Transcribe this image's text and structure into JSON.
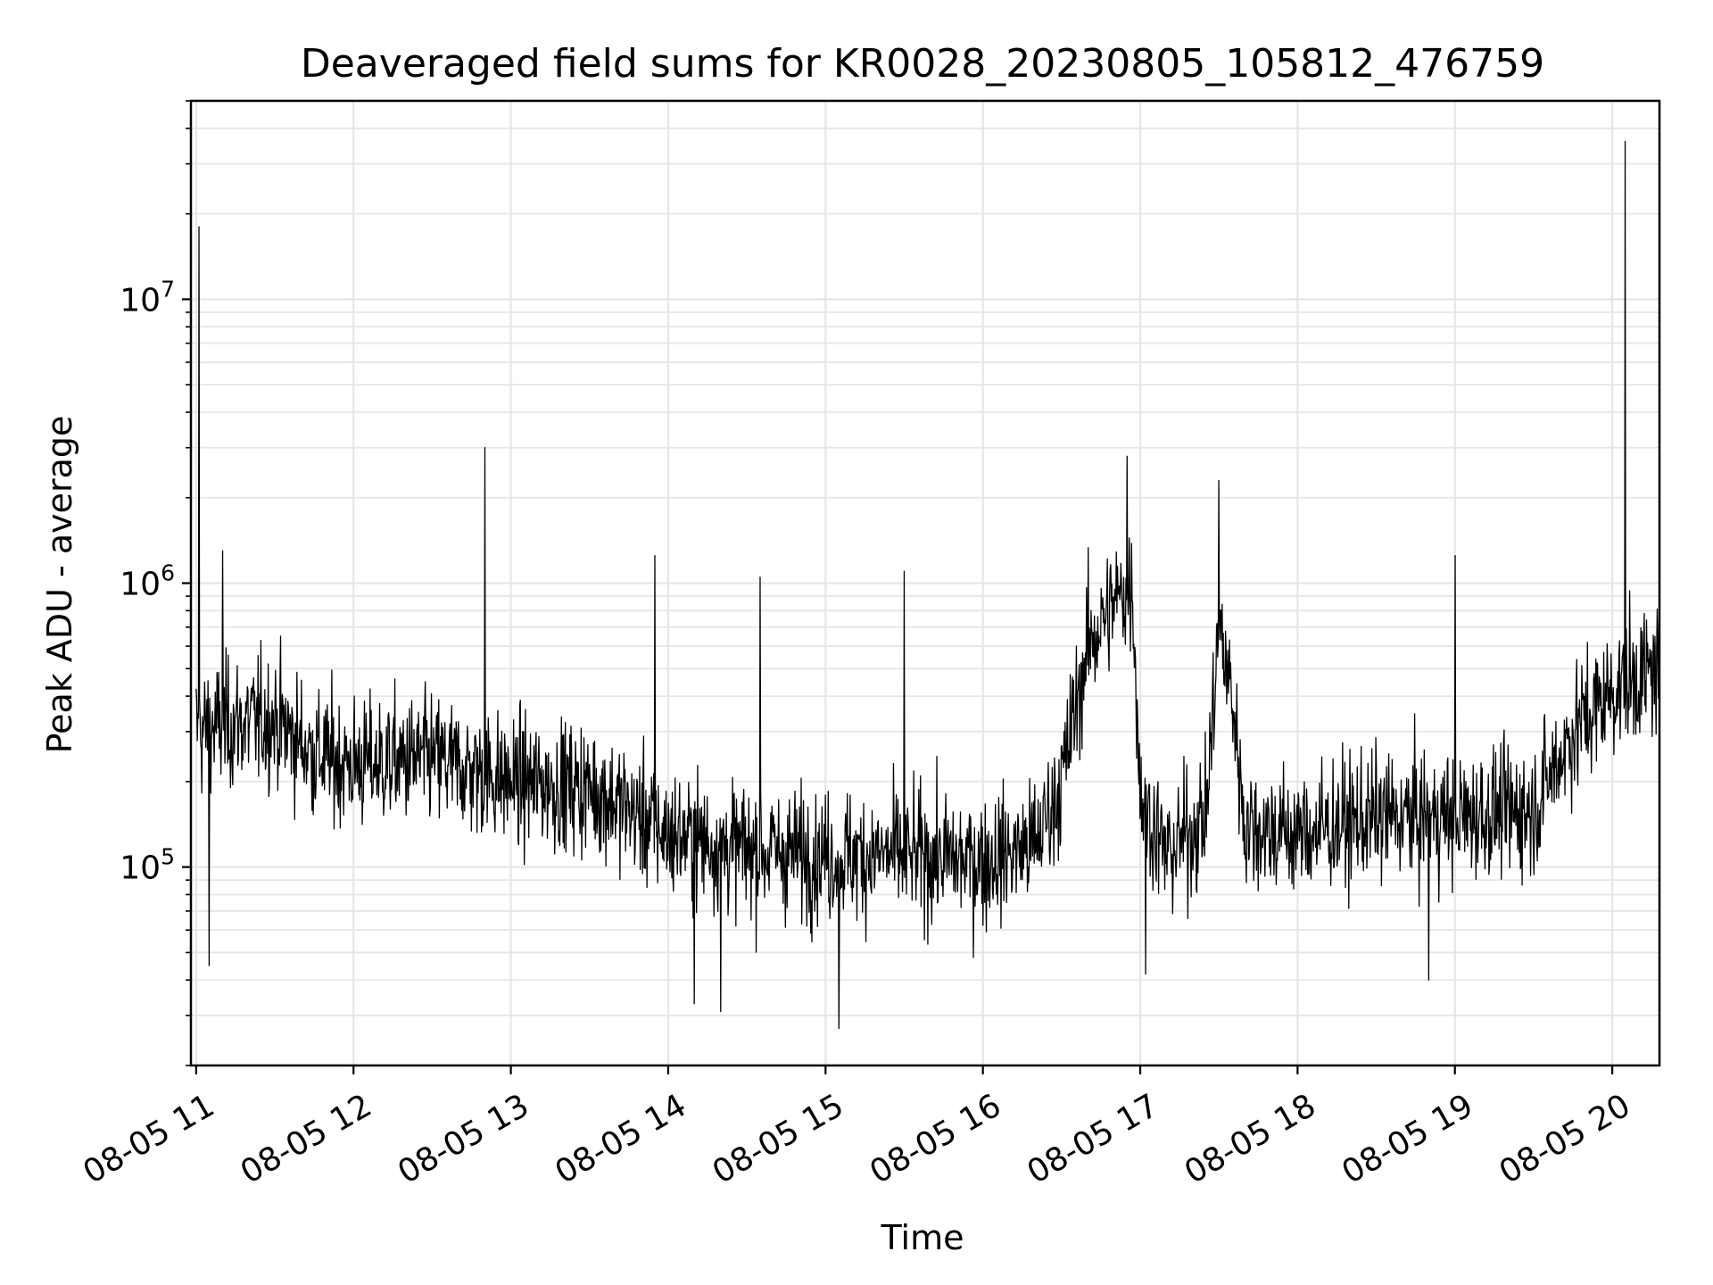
{
  "chart_data": {
    "type": "line",
    "title": "Deaveraged field sums for KR0028_20230805_105812_476759",
    "xlabel": "Time",
    "ylabel": "Peak ADU - average",
    "x_start": "2023-08-05 10:58",
    "x_end": "2023-08-05 20:18",
    "xlim": [
      "2023-08-05 10:58",
      "2023-08-05 20:18"
    ],
    "x_ticks": [
      "08-05 11",
      "08-05 12",
      "08-05 13",
      "08-05 14",
      "08-05 15",
      "08-05 16",
      "08-05 17",
      "08-05 18",
      "08-05 19",
      "08-05 20"
    ],
    "y_scale": "log",
    "ylim": [
      20000,
      50000000
    ],
    "y_ticks": [
      {
        "base": "10",
        "exp": "5",
        "value": 100000
      },
      {
        "base": "10",
        "exp": "6",
        "value": 1000000
      },
      {
        "base": "10",
        "exp": "7",
        "value": 10000000
      }
    ],
    "grid": true,
    "line_color": "#000000",
    "grid_color": "#e6e6e6",
    "series": [
      {
        "approximate_level": [
          [
            "11:00",
            300000
          ],
          [
            "11:15",
            320000
          ],
          [
            "11:30",
            330000
          ],
          [
            "11:45",
            250000
          ],
          [
            "12:00",
            230000
          ],
          [
            "12:30",
            240000
          ],
          [
            "13:00",
            200000
          ],
          [
            "13:30",
            190000
          ],
          [
            "13:45",
            160000
          ],
          [
            "14:00",
            130000
          ],
          [
            "14:30",
            115000
          ],
          [
            "15:00",
            110000
          ],
          [
            "15:30",
            110000
          ],
          [
            "16:00",
            105000
          ],
          [
            "16:20",
            120000
          ],
          [
            "16:30",
            200000
          ],
          [
            "16:40",
            600000
          ],
          [
            "16:50",
            850000
          ],
          [
            "16:57",
            1000000
          ],
          [
            "17:00",
            180000
          ],
          [
            "17:10",
            110000
          ],
          [
            "17:25",
            150000
          ],
          [
            "17:30",
            700000
          ],
          [
            "17:35",
            400000
          ],
          [
            "17:40",
            140000
          ],
          [
            "18:00",
            130000
          ],
          [
            "18:30",
            150000
          ],
          [
            "19:00",
            150000
          ],
          [
            "19:30",
            160000
          ],
          [
            "19:45",
            300000
          ],
          [
            "20:00",
            420000
          ],
          [
            "20:18",
            500000
          ]
        ],
        "spikes": [
          [
            "11:01",
            18000000
          ],
          [
            "11:10",
            1300000
          ],
          [
            "12:50",
            3000000
          ],
          [
            "13:55",
            1250000
          ],
          [
            "14:35",
            1050000
          ],
          [
            "15:30",
            1100000
          ],
          [
            "16:55",
            2800000
          ],
          [
            "17:30",
            2300000
          ],
          [
            "19:00",
            1250000
          ],
          [
            "20:05",
            36000000
          ]
        ],
        "dips": [
          [
            "11:05",
            45000
          ],
          [
            "14:10",
            33000
          ],
          [
            "14:20",
            31000
          ],
          [
            "15:05",
            27000
          ],
          [
            "17:02",
            42000
          ],
          [
            "18:50",
            40000
          ]
        ]
      }
    ]
  }
}
